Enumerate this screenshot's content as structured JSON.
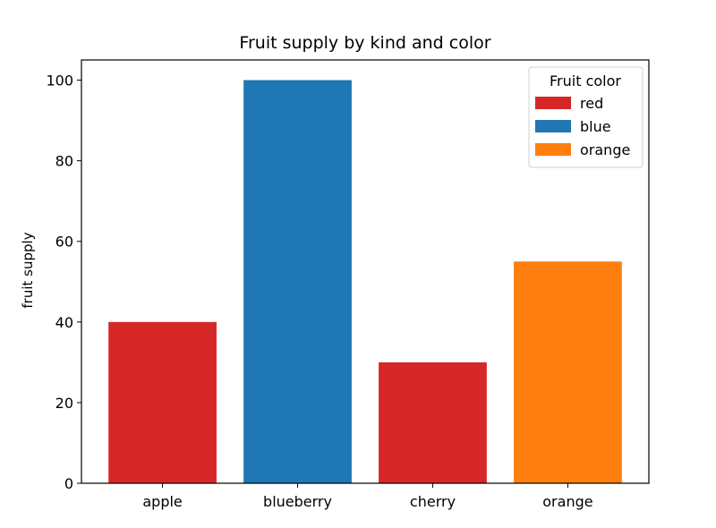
{
  "chart_data": {
    "type": "bar",
    "title": "Fruit supply by kind and color",
    "xlabel": "",
    "ylabel": "fruit supply",
    "categories": [
      "apple",
      "blueberry",
      "cherry",
      "orange"
    ],
    "values": [
      40,
      100,
      30,
      55
    ],
    "bar_colors": [
      "#d62728",
      "#1f77b4",
      "#d62728",
      "#ff7f0e"
    ],
    "ylim": [
      0,
      105
    ],
    "yticks": [
      0,
      20,
      40,
      60,
      80,
      100
    ],
    "grid": false,
    "legend": {
      "title": "Fruit color",
      "placement": "top-right",
      "entries": [
        {
          "label": "red",
          "color": "#d62728"
        },
        {
          "label": "blue",
          "color": "#1f77b4"
        },
        {
          "label": "orange",
          "color": "#ff7f0e"
        }
      ]
    }
  }
}
